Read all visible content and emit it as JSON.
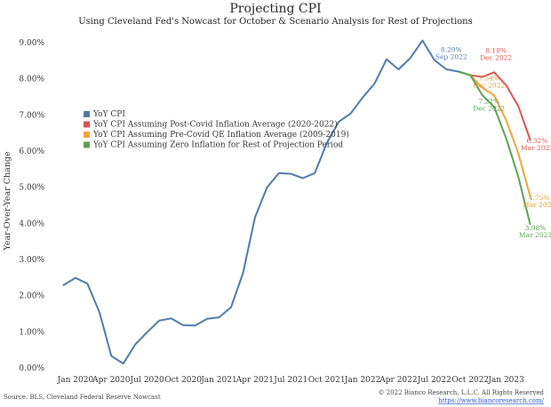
{
  "chart_data": {
    "type": "line",
    "title": "Projecting CPI",
    "subtitle": "Using Cleveland Fed's Nowcast for October & Scenario Analysis for Rest of Projections",
    "ylabel": "Year-Over-Year Change",
    "xlabel": "",
    "ylim": [
      0,
      9.0
    ],
    "yticks": [
      "0.00%",
      "1.00%",
      "2.00%",
      "3.00%",
      "4.00%",
      "5.00%",
      "6.00%",
      "7.00%",
      "8.00%",
      "9.00%"
    ],
    "ytick_values": [
      0,
      1,
      2,
      3,
      4,
      5,
      6,
      7,
      8,
      9
    ],
    "x_tick_labels": [
      "Jan 2020",
      "Apr 2020",
      "Jul 2020",
      "Oct 2020",
      "Jan 2021",
      "Apr 2021",
      "Jul 2021",
      "Oct 2021",
      "Jan 2022",
      "Apr 2022",
      "Jul 2022",
      "Oct 2022",
      "Jan 2023"
    ],
    "x_tick_months": [
      "2020-01",
      "2020-04",
      "2020-07",
      "2020-10",
      "2021-01",
      "2021-04",
      "2021-07",
      "2021-10",
      "2022-01",
      "2022-04",
      "2022-07",
      "2022-10",
      "2023-01"
    ],
    "x_range": [
      "2019-11",
      "2023-04"
    ],
    "grid": false,
    "legend_position": "left-center",
    "series": [
      {
        "name": "YoY CPI",
        "color": "#4e79a7",
        "x": [
          "2019-12",
          "2020-01",
          "2020-02",
          "2020-03",
          "2020-04",
          "2020-05",
          "2020-06",
          "2020-07",
          "2020-08",
          "2020-09",
          "2020-10",
          "2020-11",
          "2020-12",
          "2021-01",
          "2021-02",
          "2021-03",
          "2021-04",
          "2021-05",
          "2021-06",
          "2021-07",
          "2021-08",
          "2021-09",
          "2021-10",
          "2021-11",
          "2021-12",
          "2022-01",
          "2022-02",
          "2022-03",
          "2022-04",
          "2022-05",
          "2022-06",
          "2022-07",
          "2022-08",
          "2022-09"
        ],
        "values": [
          2.29,
          2.49,
          2.33,
          1.54,
          0.33,
          0.12,
          0.65,
          0.99,
          1.31,
          1.37,
          1.18,
          1.17,
          1.36,
          1.4,
          1.68,
          2.62,
          4.16,
          4.99,
          5.39,
          5.37,
          5.25,
          5.39,
          6.22,
          6.81,
          7.04,
          7.48,
          7.87,
          8.54,
          8.26,
          8.58,
          9.06,
          8.52,
          8.26,
          8.2
        ]
      },
      {
        "name": "YoY CPI Assuming Post-Covid Inflation Average (2020-2022)",
        "color": "#d9534f",
        "x": [
          "2022-09",
          "2022-10",
          "2022-11",
          "2022-12",
          "2023-01",
          "2023-02",
          "2023-03"
        ],
        "values": [
          8.2,
          8.1,
          8.05,
          8.18,
          7.82,
          7.25,
          6.32
        ]
      },
      {
        "name": "YoY CPI Assuming Pre-Covid QE Inflation Average (2009-2019)",
        "color": "#f0a43a",
        "x": [
          "2022-09",
          "2022-10",
          "2022-11",
          "2022-12",
          "2023-01",
          "2023-02",
          "2023-03"
        ],
        "values": [
          8.2,
          8.1,
          7.75,
          7.54,
          6.85,
          5.95,
          4.75
        ]
      },
      {
        "name": "YoY CPI Assuming Zero Inflation for Rest of Projection Period",
        "color": "#59a14f",
        "x": [
          "2022-09",
          "2022-10",
          "2022-11",
          "2022-12",
          "2023-01",
          "2023-02",
          "2023-03"
        ],
        "values": [
          8.2,
          8.1,
          7.55,
          7.22,
          6.35,
          5.3,
          3.98
        ]
      }
    ],
    "annotations": [
      {
        "line1": "8.20%",
        "line2": "Sep 2022",
        "x": "2022-09",
        "value": 8.2,
        "color": "#4e79a7"
      },
      {
        "line1": "8.18%",
        "line2": "Dec 2022",
        "x": "2022-12",
        "value": 8.18,
        "color": "#d9534f"
      },
      {
        "line1": "7.54%",
        "line2": "Dec 2022",
        "x": "2022-12",
        "value": 7.54,
        "color": "#e39a2e"
      },
      {
        "line1": "7.22%",
        "line2": "Dec 2022",
        "x": "2022-12",
        "value": 7.22,
        "color": "#59a14f"
      },
      {
        "line1": "6.32%",
        "line2": "Mar 2023",
        "x": "2023-03",
        "value": 6.32,
        "color": "#d9534f"
      },
      {
        "line1": "4.75%",
        "line2": "Mar 2023",
        "x": "2023-03",
        "value": 4.75,
        "color": "#e39a2e"
      },
      {
        "line1": "3.98%",
        "line2": "Mar 2023",
        "x": "2023-03",
        "value": 3.98,
        "color": "#59a14f"
      }
    ]
  },
  "footer": {
    "source": "Source: BLS, Cleveland Federal Reserve Nowcast",
    "copyright": "© 2022 Bianco Research, L.L.C. All Rights Reserved",
    "link": "https://www.biancoresearch.com/"
  }
}
